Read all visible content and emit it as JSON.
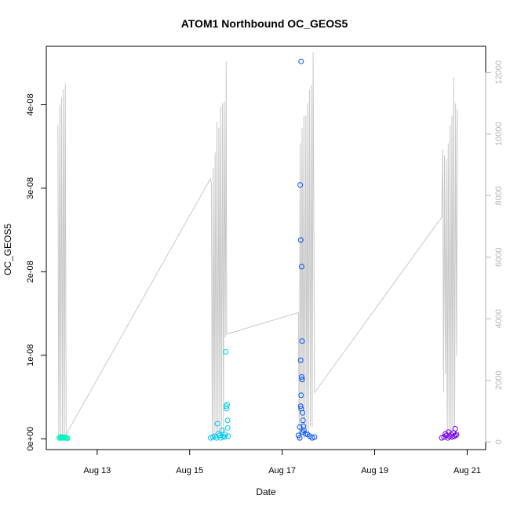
{
  "chart_data": {
    "type": "scatter",
    "title": "ATOM1 Northbound OC_GEOS5",
    "xlabel": "Date",
    "ylabel": "OC_GEOS5",
    "x_ticks": [
      {
        "day": 13,
        "label": "Aug 13"
      },
      {
        "day": 15,
        "label": "Aug 15"
      },
      {
        "day": 17,
        "label": "Aug 17"
      },
      {
        "day": 19,
        "label": "Aug 19"
      },
      {
        "day": 21,
        "label": "Aug 21"
      }
    ],
    "xlim": [
      11.9,
      21.4
    ],
    "y_ticks": [
      {
        "value": 0,
        "label": "0e+00"
      },
      {
        "value": 1e-08,
        "label": "1e-08"
      },
      {
        "value": 2e-08,
        "label": "2e-08"
      },
      {
        "value": 3e-08,
        "label": "3e-08"
      },
      {
        "value": 4e-08,
        "label": "4e-08"
      }
    ],
    "ylim": [
      -1.3e-09,
      4.7e-08
    ],
    "y2_ticks": [
      0,
      2000,
      4000,
      6000,
      8000,
      10000,
      12000
    ],
    "y2lim": [
      -250,
      12850
    ],
    "grid": false,
    "colors": {
      "line": "#c8c8c8",
      "right_axis": "#b5b5b5",
      "points_aug12": "#00f5c0",
      "points_aug15": "#00c8f0",
      "points_aug17": "#0050ff",
      "points_aug20": "#7000e8"
    },
    "series": [
      {
        "color": "#00f5c0",
        "points": [
          [
            12.18,
            1e-10
          ],
          [
            12.2,
            2e-10
          ],
          [
            12.22,
            1e-10
          ],
          [
            12.24,
            1.5e-10
          ],
          [
            12.26,
            1e-10
          ],
          [
            12.28,
            2e-10
          ],
          [
            12.3,
            1e-10
          ],
          [
            12.32,
            1.5e-10
          ],
          [
            12.34,
            1e-10
          ],
          [
            12.36,
            5e-11
          ],
          [
            12.26,
            1e-10
          ],
          [
            12.22,
            2e-10
          ]
        ]
      },
      {
        "color": "#00c8f0",
        "points": [
          [
            15.45,
            1e-10
          ],
          [
            15.5,
            2e-10
          ],
          [
            15.55,
            3e-10
          ],
          [
            15.58,
            1e-10
          ],
          [
            15.6,
            1.8e-09
          ],
          [
            15.62,
            6e-10
          ],
          [
            15.65,
            4e-10
          ],
          [
            15.67,
            1e-10
          ],
          [
            15.7,
            1e-09
          ],
          [
            15.72,
            3e-10
          ],
          [
            15.75,
            2e-10
          ],
          [
            15.77,
            5e-10
          ],
          [
            15.78,
            1.04e-08
          ],
          [
            15.79,
            3.9e-09
          ],
          [
            15.8,
            3.6e-09
          ],
          [
            15.81,
            4.1e-09
          ],
          [
            15.82,
            2.2e-09
          ],
          [
            15.82,
            1.3e-09
          ],
          [
            15.83,
            3e-10
          ]
        ]
      },
      {
        "color": "#0050ff",
        "points": [
          [
            17.35,
            4e-10
          ],
          [
            17.38,
            1e-10
          ],
          [
            17.39,
            3.04e-08
          ],
          [
            17.4,
            2.38e-08
          ],
          [
            17.41,
            4.52e-08
          ],
          [
            17.42,
            2.06e-08
          ],
          [
            17.43,
            1.17e-08
          ],
          [
            17.4,
            9.4e-09
          ],
          [
            17.42,
            7.4e-09
          ],
          [
            17.43,
            7.1e-09
          ],
          [
            17.41,
            5.2e-09
          ],
          [
            17.4,
            3.9e-09
          ],
          [
            17.41,
            3.6e-09
          ],
          [
            17.44,
            3.1e-09
          ],
          [
            17.45,
            2.2e-09
          ],
          [
            17.46,
            1.5e-09
          ],
          [
            17.47,
            1e-09
          ],
          [
            17.5,
            6e-10
          ],
          [
            17.55,
            5e-10
          ],
          [
            17.6,
            3e-10
          ],
          [
            17.65,
            1e-10
          ],
          [
            17.7,
            2e-10
          ],
          [
            17.38,
            1.4e-09
          ],
          [
            17.44,
            8e-10
          ]
        ]
      },
      {
        "color": "#7000e8",
        "points": [
          [
            20.45,
            1e-10
          ],
          [
            20.5,
            2e-10
          ],
          [
            20.53,
            6e-10
          ],
          [
            20.55,
            4e-10
          ],
          [
            20.58,
            1e-10
          ],
          [
            20.6,
            8e-10
          ],
          [
            20.62,
            3e-10
          ],
          [
            20.65,
            5e-10
          ],
          [
            20.67,
            2e-10
          ],
          [
            20.7,
            7e-10
          ],
          [
            20.72,
            3e-10
          ],
          [
            20.74,
            1.2e-09
          ],
          [
            20.75,
            4e-10
          ],
          [
            20.77,
            5e-10
          ]
        ]
      }
    ],
    "altitude_line": [
      [
        12.15,
        10300
      ],
      [
        12.17,
        20
      ],
      [
        12.19,
        10950
      ],
      [
        12.21,
        30
      ],
      [
        12.23,
        11200
      ],
      [
        12.25,
        50
      ],
      [
        12.27,
        11450
      ],
      [
        12.29,
        80
      ],
      [
        12.31,
        11650
      ],
      [
        12.33,
        200
      ],
      [
        12.35,
        300
      ],
      [
        15.45,
        8550
      ],
      [
        15.47,
        8400
      ],
      [
        15.49,
        20
      ],
      [
        15.51,
        8900
      ],
      [
        15.53,
        100
      ],
      [
        15.55,
        9400
      ],
      [
        15.57,
        100
      ],
      [
        15.59,
        10400
      ],
      [
        15.61,
        150
      ],
      [
        15.63,
        10200
      ],
      [
        15.65,
        200
      ],
      [
        15.67,
        10900
      ],
      [
        15.69,
        200
      ],
      [
        15.71,
        11000
      ],
      [
        15.73,
        300
      ],
      [
        15.75,
        11050
      ],
      [
        15.77,
        3400
      ],
      [
        15.79,
        12350
      ],
      [
        15.8,
        3500
      ],
      [
        17.35,
        4200
      ],
      [
        17.37,
        20
      ],
      [
        17.39,
        9700
      ],
      [
        17.41,
        200
      ],
      [
        17.43,
        10200
      ],
      [
        17.45,
        300
      ],
      [
        17.47,
        10600
      ],
      [
        17.49,
        100
      ],
      [
        17.51,
        10600
      ],
      [
        17.53,
        400
      ],
      [
        17.55,
        11000
      ],
      [
        17.57,
        200
      ],
      [
        17.59,
        11450
      ],
      [
        17.61,
        500
      ],
      [
        17.63,
        11600
      ],
      [
        17.65,
        500
      ],
      [
        17.67,
        12650
      ],
      [
        17.7,
        1600
      ],
      [
        20.45,
        7300
      ],
      [
        20.47,
        9500
      ],
      [
        20.49,
        1600
      ],
      [
        20.51,
        9300
      ],
      [
        20.53,
        2200
      ],
      [
        20.55,
        9200
      ],
      [
        20.57,
        100
      ],
      [
        20.59,
        9700
      ],
      [
        20.61,
        200
      ],
      [
        20.63,
        10300
      ],
      [
        20.65,
        200
      ],
      [
        20.67,
        10600
      ],
      [
        20.69,
        300
      ],
      [
        20.71,
        11850
      ],
      [
        20.73,
        500
      ],
      [
        20.75,
        11000
      ],
      [
        20.77,
        2800
      ],
      [
        20.79,
        10800
      ]
    ]
  }
}
